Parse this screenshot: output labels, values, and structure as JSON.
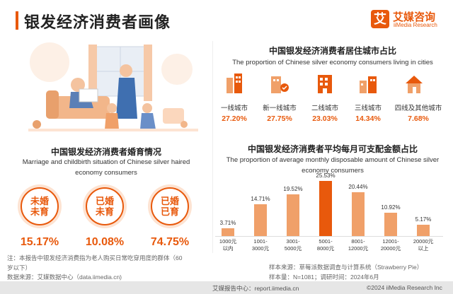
{
  "header": {
    "title": "银发经济消费者画像",
    "logo_mark": "艾",
    "logo_cn": "艾媒咨询",
    "logo_en": "iiMedia Research"
  },
  "city_section": {
    "title": "中国银发经济消费者居住城市占比",
    "subtitle": "The proportion of Chinese silver economy consumers living in cities",
    "cities": [
      {
        "label": "一线城市",
        "pct": "27.20%"
      },
      {
        "label": "新一线城市",
        "pct": "27.75%"
      },
      {
        "label": "二线城市",
        "pct": "23.03%"
      },
      {
        "label": "三线城市",
        "pct": "14.34%"
      },
      {
        "label": "四线及其他城市",
        "pct": "7.68%"
      }
    ]
  },
  "marriage_section": {
    "title": "中国银发经济消费者婚育情况",
    "subtitle_1": "Marriage and childbirth situation of Chinese silver haired",
    "subtitle_2": "economy consumers",
    "items": [
      {
        "line1": "未婚",
        "line2": "未育",
        "pct": "15.17%"
      },
      {
        "line1": "已婚",
        "line2": "未育",
        "pct": "10.08%"
      },
      {
        "line1": "已婚",
        "line2": "已育",
        "pct": "74.75%"
      }
    ]
  },
  "notes": {
    "note_1": "注：本报告中银发经济消费指为老人购买日常吃穿用度的群体（60",
    "note_2": "岁以下）",
    "source_left": "数据来源：艾媒数据中心（data.iimedia.cn)",
    "sample_source": "样本来源：草莓派数据调查与计算系统（Strawberry Pie）",
    "sample_size": "样本量：N=1081；调研时间：2024年6月"
  },
  "footer": {
    "left": "艾媒报告中心：report.iimedia.cn",
    "right": "©2024  iiMedia Research Inc"
  },
  "chart_data": {
    "type": "bar",
    "title": "中国银发经济消费者平均每月可支配金额占比",
    "subtitle_1": "The proportion of average monthly disposable amount of Chinese silver",
    "subtitle_2": "economy consumers",
    "categories": [
      [
        "1000元",
        "以内"
      ],
      [
        "1001-",
        "3000元"
      ],
      [
        "3001-",
        "5000元"
      ],
      [
        "5001-",
        "8000元"
      ],
      [
        "8001-",
        "12000元"
      ],
      [
        "12001-",
        "20000元"
      ],
      [
        "20000元",
        "以上"
      ]
    ],
    "values": [
      3.71,
      14.71,
      19.52,
      25.53,
      20.44,
      10.92,
      5.17
    ],
    "value_labels": [
      "3.71%",
      "14.71%",
      "19.52%",
      "25.53%",
      "20.44%",
      "10.92%",
      "5.17%"
    ],
    "ylim": [
      0,
      27
    ],
    "colors": {
      "bar": "#f0a069",
      "bar_max": "#e8590c"
    }
  }
}
